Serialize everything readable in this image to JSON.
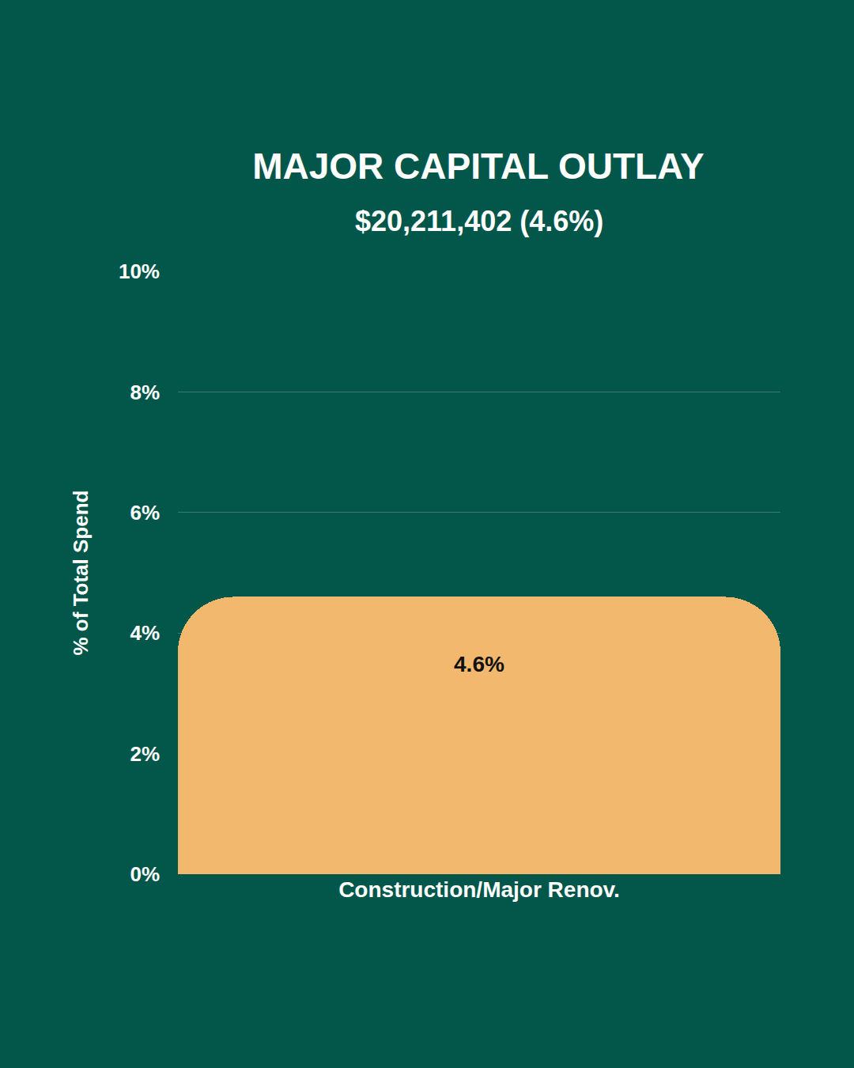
{
  "chart_data": {
    "type": "bar",
    "title": "MAJOR CAPITAL OUTLAY",
    "subtitle": "$20,211,402 (4.6%)",
    "y_label": "% of Total Spend",
    "categories": [
      "Construction/Major Renov."
    ],
    "values": [
      4.6
    ],
    "value_labels": [
      "4.6%"
    ],
    "color": "#F2B96E",
    "ylim": [
      0,
      10
    ],
    "yticks": [
      {
        "value": 0,
        "label": "0%"
      },
      {
        "value": 2,
        "label": "2%"
      },
      {
        "value": 4,
        "label": "4%"
      },
      {
        "value": 6,
        "label": "6%"
      },
      {
        "value": 8,
        "label": "8%"
      },
      {
        "value": 10,
        "label": "10%"
      }
    ],
    "grid": true,
    "data_labels": true
  }
}
